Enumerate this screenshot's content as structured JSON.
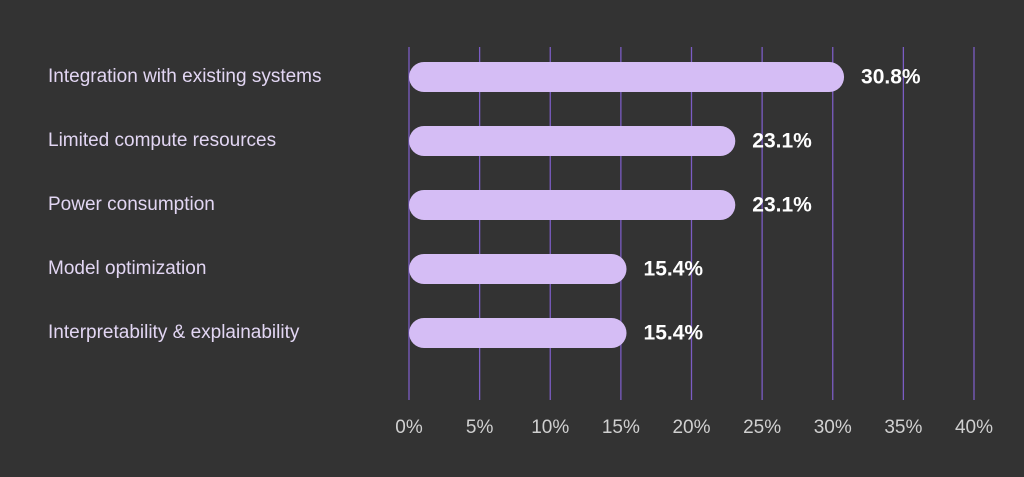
{
  "chart_data": {
    "type": "bar",
    "orientation": "horizontal",
    "title": "",
    "xlabel": "",
    "ylabel": "",
    "categories": [
      "Integration with existing systems",
      "Limited compute resources",
      "Power consumption",
      "Model optimization",
      "Interpretability & explainability"
    ],
    "values": [
      30.8,
      23.1,
      23.1,
      15.4,
      15.4
    ],
    "value_labels": [
      "30.8%",
      "23.1%",
      "23.1%",
      "15.4%",
      "15.4%"
    ],
    "xlim": [
      0,
      40
    ],
    "xticks": [
      0,
      5,
      10,
      15,
      20,
      25,
      30,
      35,
      40
    ],
    "xtick_labels": [
      "0%",
      "5%",
      "10%",
      "15%",
      "20%",
      "25%",
      "30%",
      "35%",
      "40%"
    ],
    "grid": "vertical",
    "legend": "none",
    "colors": {
      "background": "#333333",
      "bar": "#d5bdf5",
      "grid": "#7b5cc4",
      "category_text": "#e2d6f3",
      "value_text": "#ffffff",
      "tick_text": "#d0d0d0"
    }
  }
}
